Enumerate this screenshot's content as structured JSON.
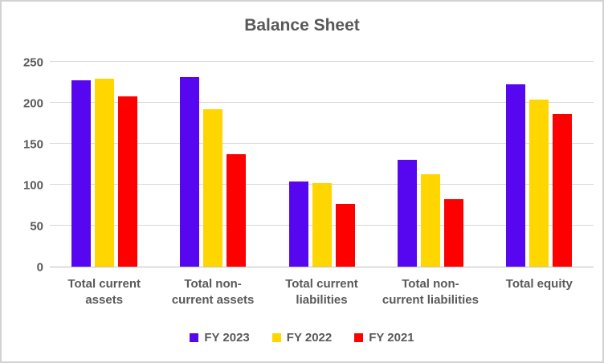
{
  "chart_data": {
    "type": "bar",
    "title": "Balance Sheet",
    "categories": [
      "Total current assets",
      "Total non-current assets",
      "Total current liabilities",
      "Total non-current liabilities",
      "Total equity"
    ],
    "category_lines": [
      [
        "Total current",
        "assets"
      ],
      [
        "Total non-",
        "current assets"
      ],
      [
        "Total current",
        "liabilities"
      ],
      [
        "Total non-",
        "current liabilities"
      ],
      [
        "Total equity"
      ]
    ],
    "series": [
      {
        "name": "FY 2023",
        "color": "#5706F0",
        "values": [
          227,
          231,
          104,
          130,
          223
        ]
      },
      {
        "name": "FY 2022",
        "color": "#FFD600",
        "values": [
          229,
          192,
          102,
          113,
          204
        ]
      },
      {
        "name": "FY 2021",
        "color": "#FE0000",
        "values": [
          208,
          137,
          76,
          82,
          186
        ]
      }
    ],
    "xlabel": "",
    "ylabel": "",
    "ylim": [
      0,
      250
    ],
    "yticks": [
      0,
      50,
      100,
      150,
      200,
      250
    ],
    "grid": true,
    "legend_position": "bottom"
  },
  "style": {
    "text_color": "#595959",
    "gridline_color": "#D9D9D9",
    "axis_line_color": "#BFBFBF",
    "border_color": "#D2D2D2",
    "background": "#FFFFFF"
  }
}
